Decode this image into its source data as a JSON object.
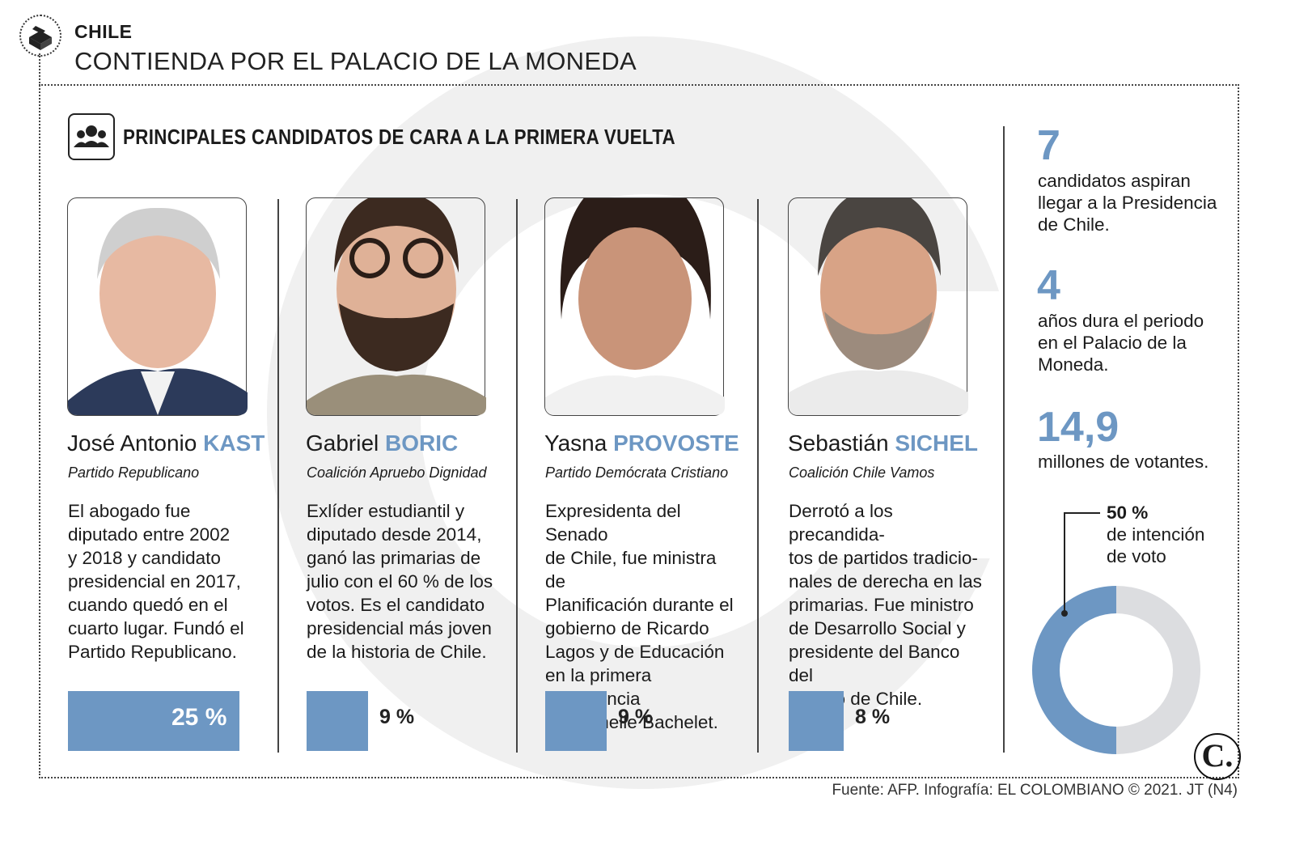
{
  "header": {
    "kicker": "CHILE",
    "title": "CONTIENDA POR EL PALACIO DE LA MONEDA"
  },
  "section": {
    "title": "PRINCIPALES CANDIDATOS DE CARA A LA PRIMERA VUELTA",
    "icon": "people-group-icon"
  },
  "chart_data": {
    "type": "bar",
    "categories": [
      "José Antonio KAST",
      "Gabriel BORIC",
      "Yasna PROVOSTE",
      "Sebastián SICHEL"
    ],
    "values": [
      25,
      9,
      9,
      8
    ],
    "value_labels": [
      "25 %",
      "9 %",
      "9 %",
      "8 %"
    ],
    "bar_color": "#6d97c3",
    "ylim": [
      0,
      25
    ]
  },
  "candidates": [
    {
      "first": "José Antonio",
      "last": "KAST",
      "party": "Partido Republicano",
      "bio": [
        "El abogado fue",
        "diputado entre 2002",
        "y 2018 y candidato",
        "presidencial en 2017,",
        "cuando quedó en el",
        "cuarto lugar. Fundó el",
        "Partido Republicano."
      ],
      "photo_icon": "portrait-photo"
    },
    {
      "first": "Gabriel",
      "last": "BORIC",
      "party": "Coalición Apruebo Dignidad",
      "bio": [
        "Exlíder estudiantil y",
        "diputado desde 2014,",
        "ganó las primarias de",
        "julio con el 60 % de los",
        "votos. Es el candidato",
        "presidencial más joven",
        "de la historia de Chile."
      ],
      "photo_icon": "portrait-photo"
    },
    {
      "first": "Yasna",
      "last": "PROVOSTE",
      "party": "Partido Demócrata Cristiano",
      "bio": [
        "Expresidenta del Senado",
        "de Chile, fue ministra de",
        "Planificación durante el",
        "gobierno de Ricardo",
        "Lagos y de Educación",
        "en la primera Presidencia",
        "de Michelle Bachelet."
      ],
      "photo_icon": "portrait-photo"
    },
    {
      "first": "Sebastián",
      "last": "SICHEL",
      "party": "Coalición Chile Vamos",
      "bio": [
        "Derrotó a los precandida-",
        "tos de partidos tradicio-",
        "nales de derecha en las",
        "primarias. Fue ministro",
        "de Desarrollo Social y",
        "presidente del Banco del",
        "Estado de Chile."
      ],
      "photo_icon": "portrait-photo"
    }
  ],
  "facts": [
    {
      "number": "7",
      "text": [
        "candidatos aspiran",
        "llegar a la Presidencia",
        "de Chile."
      ]
    },
    {
      "number": "4",
      "text": [
        "años dura el periodo",
        "en el Palacio de la",
        "Moneda."
      ]
    },
    {
      "number": "14,9",
      "text": [
        "millones de votantes."
      ]
    }
  ],
  "donut": {
    "value": 50,
    "label_value": "50 %",
    "label_text": [
      "de intención",
      "de voto"
    ],
    "color": "#6d97c3",
    "rest_color": "#dcdde0"
  },
  "footer": {
    "source": "Fuente: AFP. Infografía: EL COLOMBIANO © 2021. JT (N4)",
    "brand_letter": "C."
  }
}
